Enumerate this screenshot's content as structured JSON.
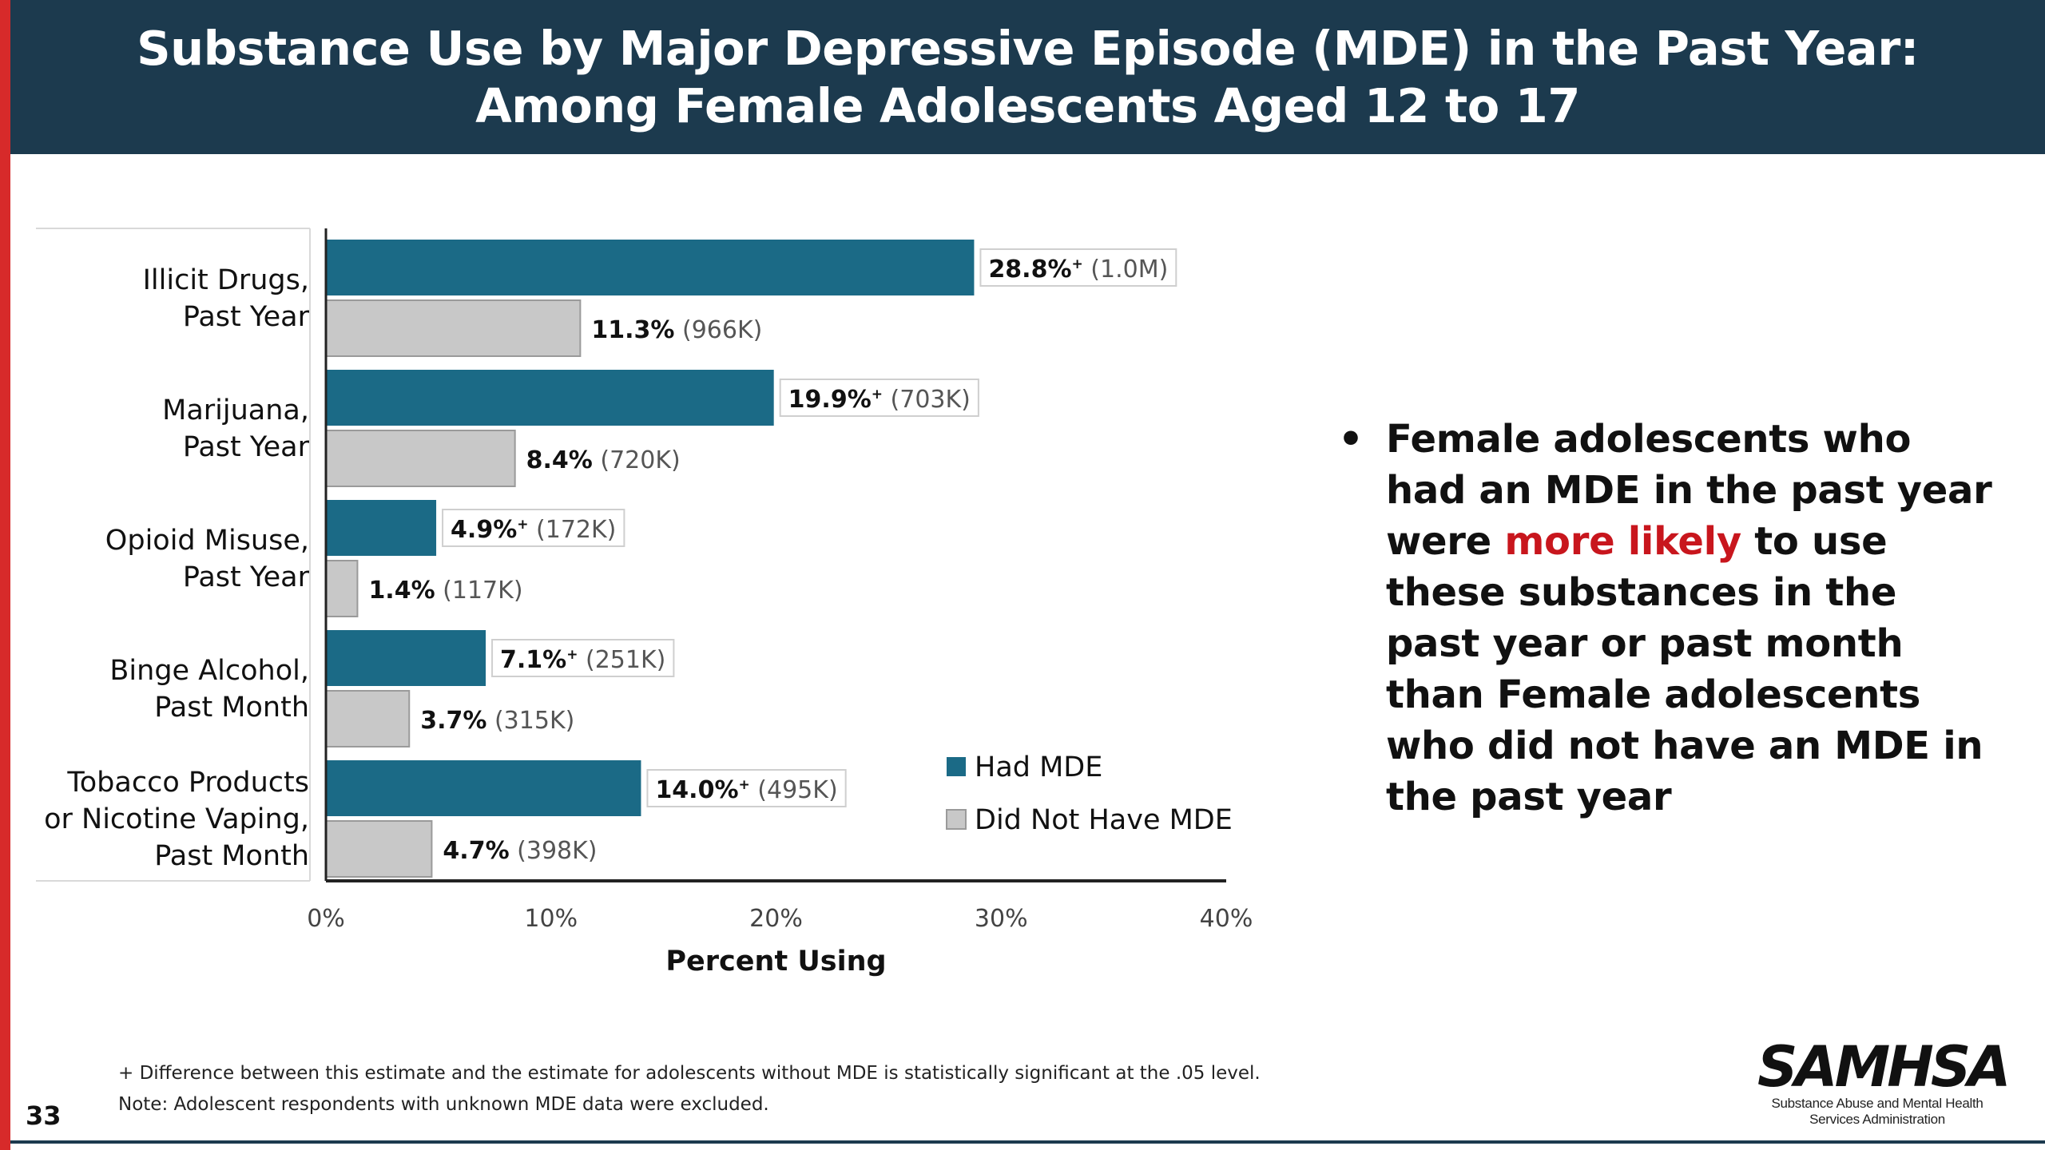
{
  "header": {
    "title_line1": "Substance Use by Major Depressive Episode (MDE) in the Past Year:",
    "title_line2": "Among Female Adolescents Aged 12 to 17"
  },
  "colors": {
    "header_bg": "#1c3a4e",
    "accent_bar": "#d72a2a",
    "had_mde": "#1b6a86",
    "did_not_have_mde": "#c8c8c8",
    "highlight_text": "#c8161d"
  },
  "chart_data": {
    "type": "bar",
    "orientation": "horizontal",
    "categories": [
      [
        "Illicit Drugs,",
        "Past Year"
      ],
      [
        "Marijuana,",
        "Past Year"
      ],
      [
        "Opioid Misuse,",
        "Past Year"
      ],
      [
        "Binge Alcohol,",
        "Past Month"
      ],
      [
        "Tobacco Products",
        "or Nicotine Vaping,",
        "Past Month"
      ]
    ],
    "series": [
      {
        "name": "Had MDE",
        "values": [
          28.8,
          19.9,
          4.9,
          7.1,
          14.0
        ],
        "labels": [
          "28.8%",
          "19.9%",
          "4.9%",
          "7.1%",
          "14.0%"
        ],
        "significance_marker": "+",
        "counts": [
          "(1.0M)",
          "(703K)",
          "(172K)",
          "(251K)",
          "(495K)"
        ]
      },
      {
        "name": "Did Not Have MDE",
        "values": [
          11.3,
          8.4,
          1.4,
          3.7,
          4.7
        ],
        "labels": [
          "11.3%",
          "8.4%",
          "1.4%",
          "3.7%",
          "4.7%"
        ],
        "counts": [
          "(966K)",
          "(720K)",
          "(117K)",
          "(315K)",
          "(398K)"
        ]
      }
    ],
    "xlim": [
      0,
      40
    ],
    "xticks": [
      "0%",
      "10%",
      "20%",
      "30%",
      "40%"
    ],
    "xlabel": "Percent Using",
    "ylabel": "",
    "grid": false,
    "legend_position": "bottom-right"
  },
  "bullet": {
    "before": "Female adolescents who had an MDE in the past year were ",
    "highlight": "more likely",
    "after": " to use these substances in the past year or past month than Female adolescents who did not have an MDE in the past year"
  },
  "footnotes": {
    "line1": "+ Difference between this estimate and the estimate for adolescents without MDE is statistically significant at the .05 level.",
    "line2": "Note: Adolescent respondents with unknown MDE data were excluded."
  },
  "page_number": "33",
  "logo": {
    "wordmark": "SAMHSA",
    "subtitle_line1": "Substance Abuse and Mental Health",
    "subtitle_line2": "Services Administration"
  }
}
